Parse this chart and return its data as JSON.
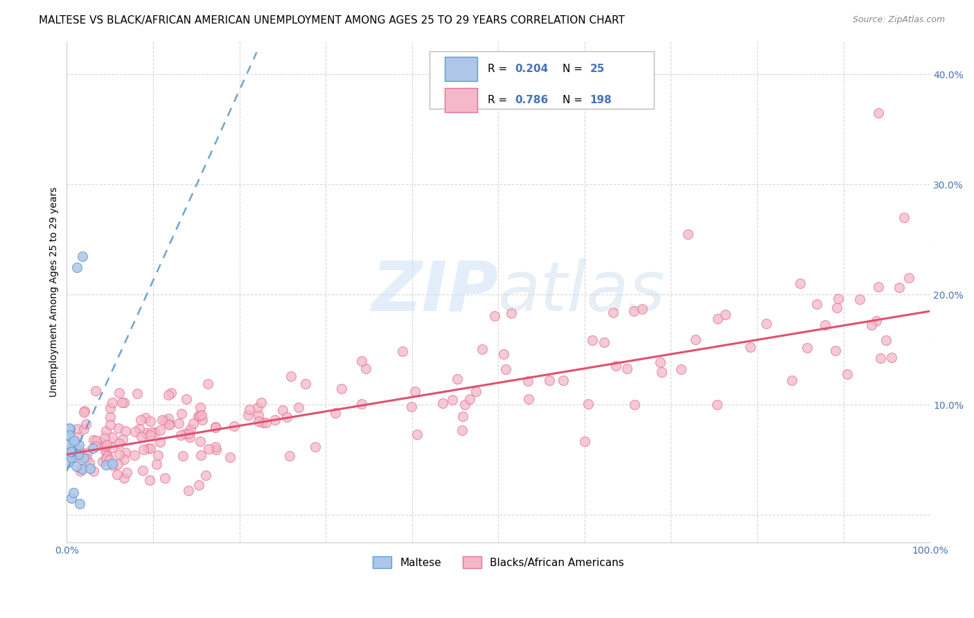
{
  "title": "MALTESE VS BLACK/AFRICAN AMERICAN UNEMPLOYMENT AMONG AGES 25 TO 29 YEARS CORRELATION CHART",
  "source": "Source: ZipAtlas.com",
  "ylabel": "Unemployment Among Ages 25 to 29 years",
  "xlim": [
    0,
    1.0
  ],
  "ylim": [
    -0.025,
    0.43
  ],
  "xticks": [
    0.0,
    0.1,
    0.2,
    0.3,
    0.4,
    0.5,
    0.6,
    0.7,
    0.8,
    0.9,
    1.0
  ],
  "xticklabels": [
    "0.0%",
    "",
    "",
    "",
    "",
    "",
    "",
    "",
    "",
    "",
    "100.0%"
  ],
  "yticks": [
    0.0,
    0.1,
    0.2,
    0.3,
    0.4
  ],
  "yticklabels": [
    "",
    "10.0%",
    "20.0%",
    "30.0%",
    "40.0%"
  ],
  "legend_labels": [
    "Maltese",
    "Blacks/African Americans"
  ],
  "blue_fill": "#aec6e8",
  "blue_edge": "#5b9bd5",
  "pink_fill": "#f4b8c8",
  "pink_edge": "#e87090",
  "trendline_blue_color": "#5b9bd5",
  "trendline_pink_color": "#e05070",
  "R_blue": "0.204",
  "N_blue": "25",
  "R_pink": "0.786",
  "N_pink": "198",
  "watermark_zip": "ZIP",
  "watermark_atlas": "atlas",
  "grid_color": "#d8d8d8",
  "bg_color": "#ffffff",
  "legend_text_color": "#4472c4",
  "title_fontsize": 11,
  "tick_fontsize": 10,
  "source_fontsize": 9
}
